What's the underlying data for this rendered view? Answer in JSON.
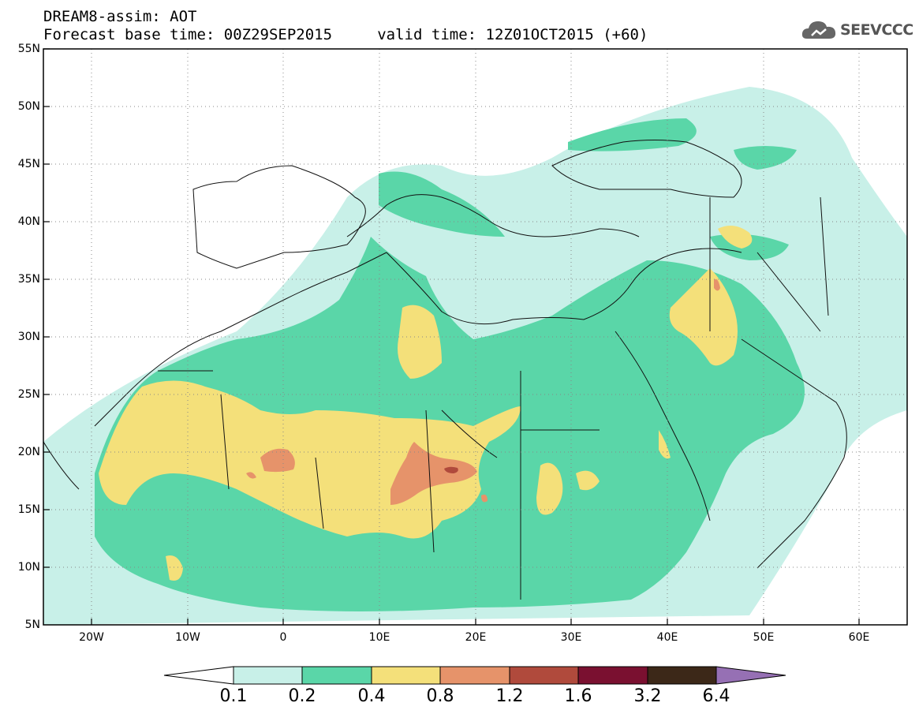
{
  "header": {
    "title_line1": "DREAM8-assim: AOT",
    "title_line2": "Forecast base time: 00Z29SEP2015     valid time: 12Z01OCT2015 (+60)"
  },
  "logo": {
    "text": "SEEVCCC",
    "icon": "cloud-icon"
  },
  "map": {
    "variable": "AOT",
    "lat_labels": [
      "55N",
      "50N",
      "45N",
      "40N",
      "35N",
      "30N",
      "25N",
      "20N",
      "15N",
      "10N",
      "5N"
    ],
    "lon_labels": [
      "20W",
      "10W",
      "0",
      "10E",
      "20E",
      "30E",
      "40E",
      "50E",
      "60E"
    ]
  },
  "colorbar": {
    "labels": [
      "0.1",
      "0.2",
      "0.4",
      "0.8",
      "1.2",
      "1.6",
      "3.2",
      "6.4"
    ],
    "colors": [
      "#ffffff",
      "#c8f0e8",
      "#5ad6a8",
      "#f4e07a",
      "#e6936a",
      "#b04a3c",
      "#7a1030",
      "#3c2818",
      "#9670b4"
    ]
  }
}
